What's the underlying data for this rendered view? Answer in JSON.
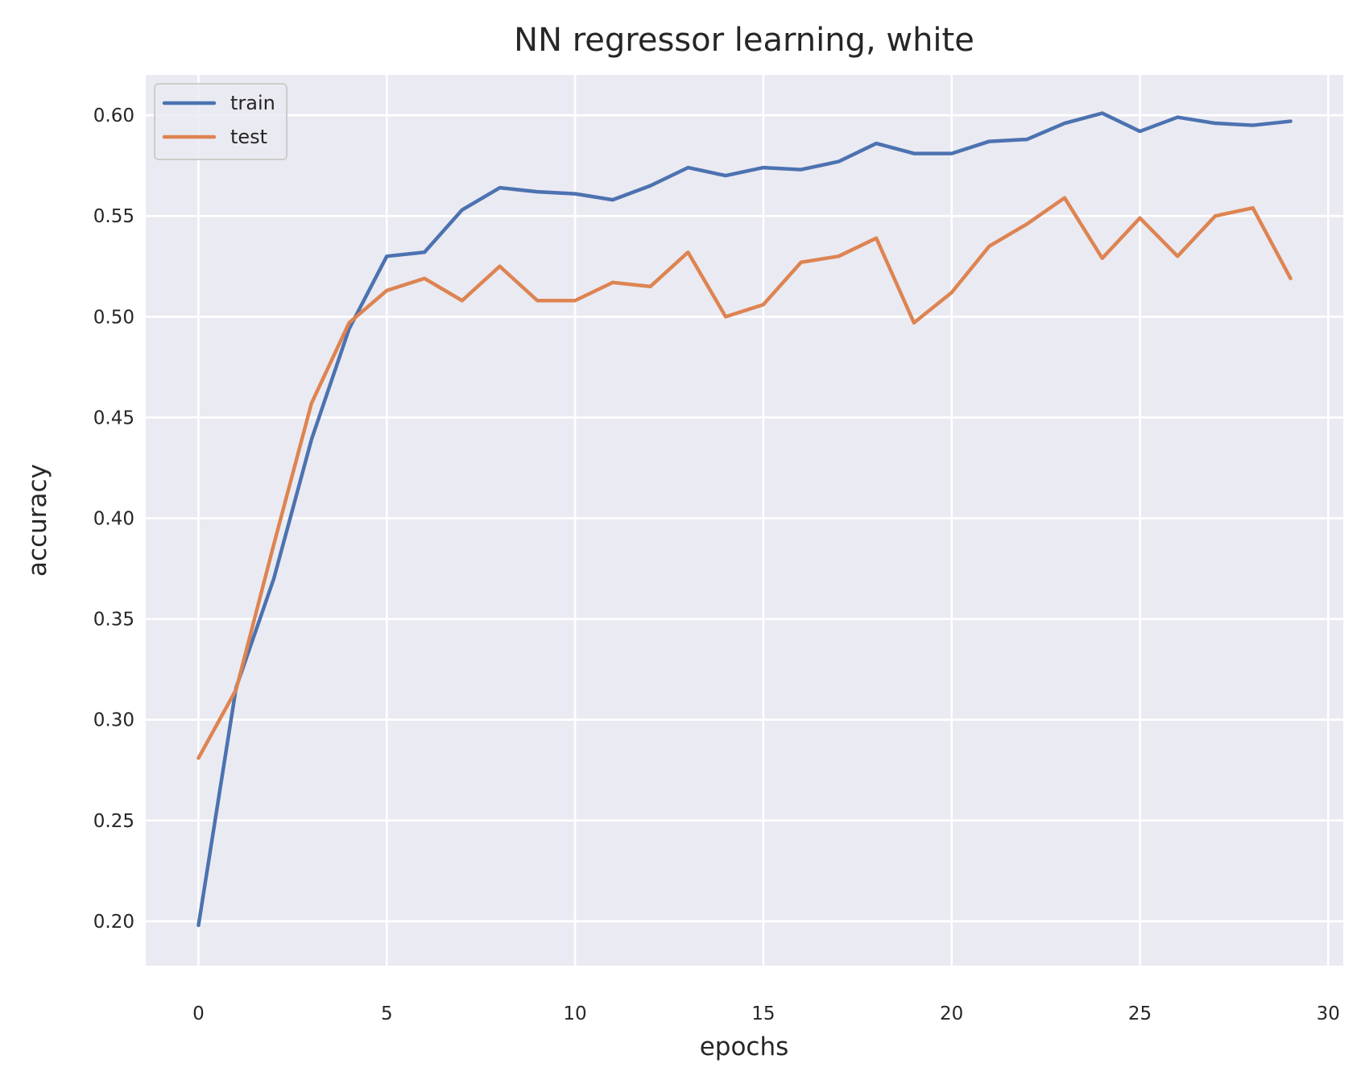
{
  "chart_data": {
    "type": "line",
    "title": "NN regressor learning, white",
    "xlabel": "epochs",
    "ylabel": "accuracy",
    "xlim": [
      -1.4,
      30.4
    ],
    "ylim": [
      0.178,
      0.62
    ],
    "xticks": [
      0,
      5,
      10,
      15,
      20,
      25,
      30
    ],
    "xtick_labels": [
      "0",
      "5",
      "10",
      "15",
      "20",
      "25",
      "30"
    ],
    "yticks": [
      0.2,
      0.25,
      0.3,
      0.35,
      0.4,
      0.45,
      0.5,
      0.55,
      0.6
    ],
    "ytick_labels": [
      "0.20",
      "0.25",
      "0.30",
      "0.35",
      "0.40",
      "0.45",
      "0.50",
      "0.55",
      "0.60"
    ],
    "grid": true,
    "legend_position": "top-left",
    "background_color": "#eaeaf2",
    "x": [
      0,
      1,
      2,
      3,
      4,
      5,
      6,
      7,
      8,
      9,
      10,
      11,
      12,
      13,
      14,
      15,
      16,
      17,
      18,
      19,
      20,
      21,
      22,
      23,
      24,
      25,
      26,
      27,
      28,
      29
    ],
    "series": [
      {
        "name": "train",
        "color": "#4c72b0",
        "values": [
          0.198,
          0.316,
          0.37,
          0.439,
          0.494,
          0.53,
          0.532,
          0.553,
          0.564,
          0.562,
          0.561,
          0.558,
          0.565,
          0.574,
          0.57,
          0.574,
          0.573,
          0.577,
          0.586,
          0.581,
          0.581,
          0.587,
          0.588,
          0.596,
          0.601,
          0.592,
          0.599,
          0.596,
          0.595,
          0.597
        ]
      },
      {
        "name": "test",
        "color": "#dd8452",
        "values": [
          0.281,
          0.315,
          0.387,
          0.457,
          0.497,
          0.513,
          0.519,
          0.508,
          0.525,
          0.508,
          0.508,
          0.517,
          0.515,
          0.532,
          0.5,
          0.506,
          0.527,
          0.53,
          0.539,
          0.497,
          0.512,
          0.535,
          0.546,
          0.559,
          0.529,
          0.549,
          0.53,
          0.55,
          0.554,
          0.519
        ]
      }
    ]
  }
}
